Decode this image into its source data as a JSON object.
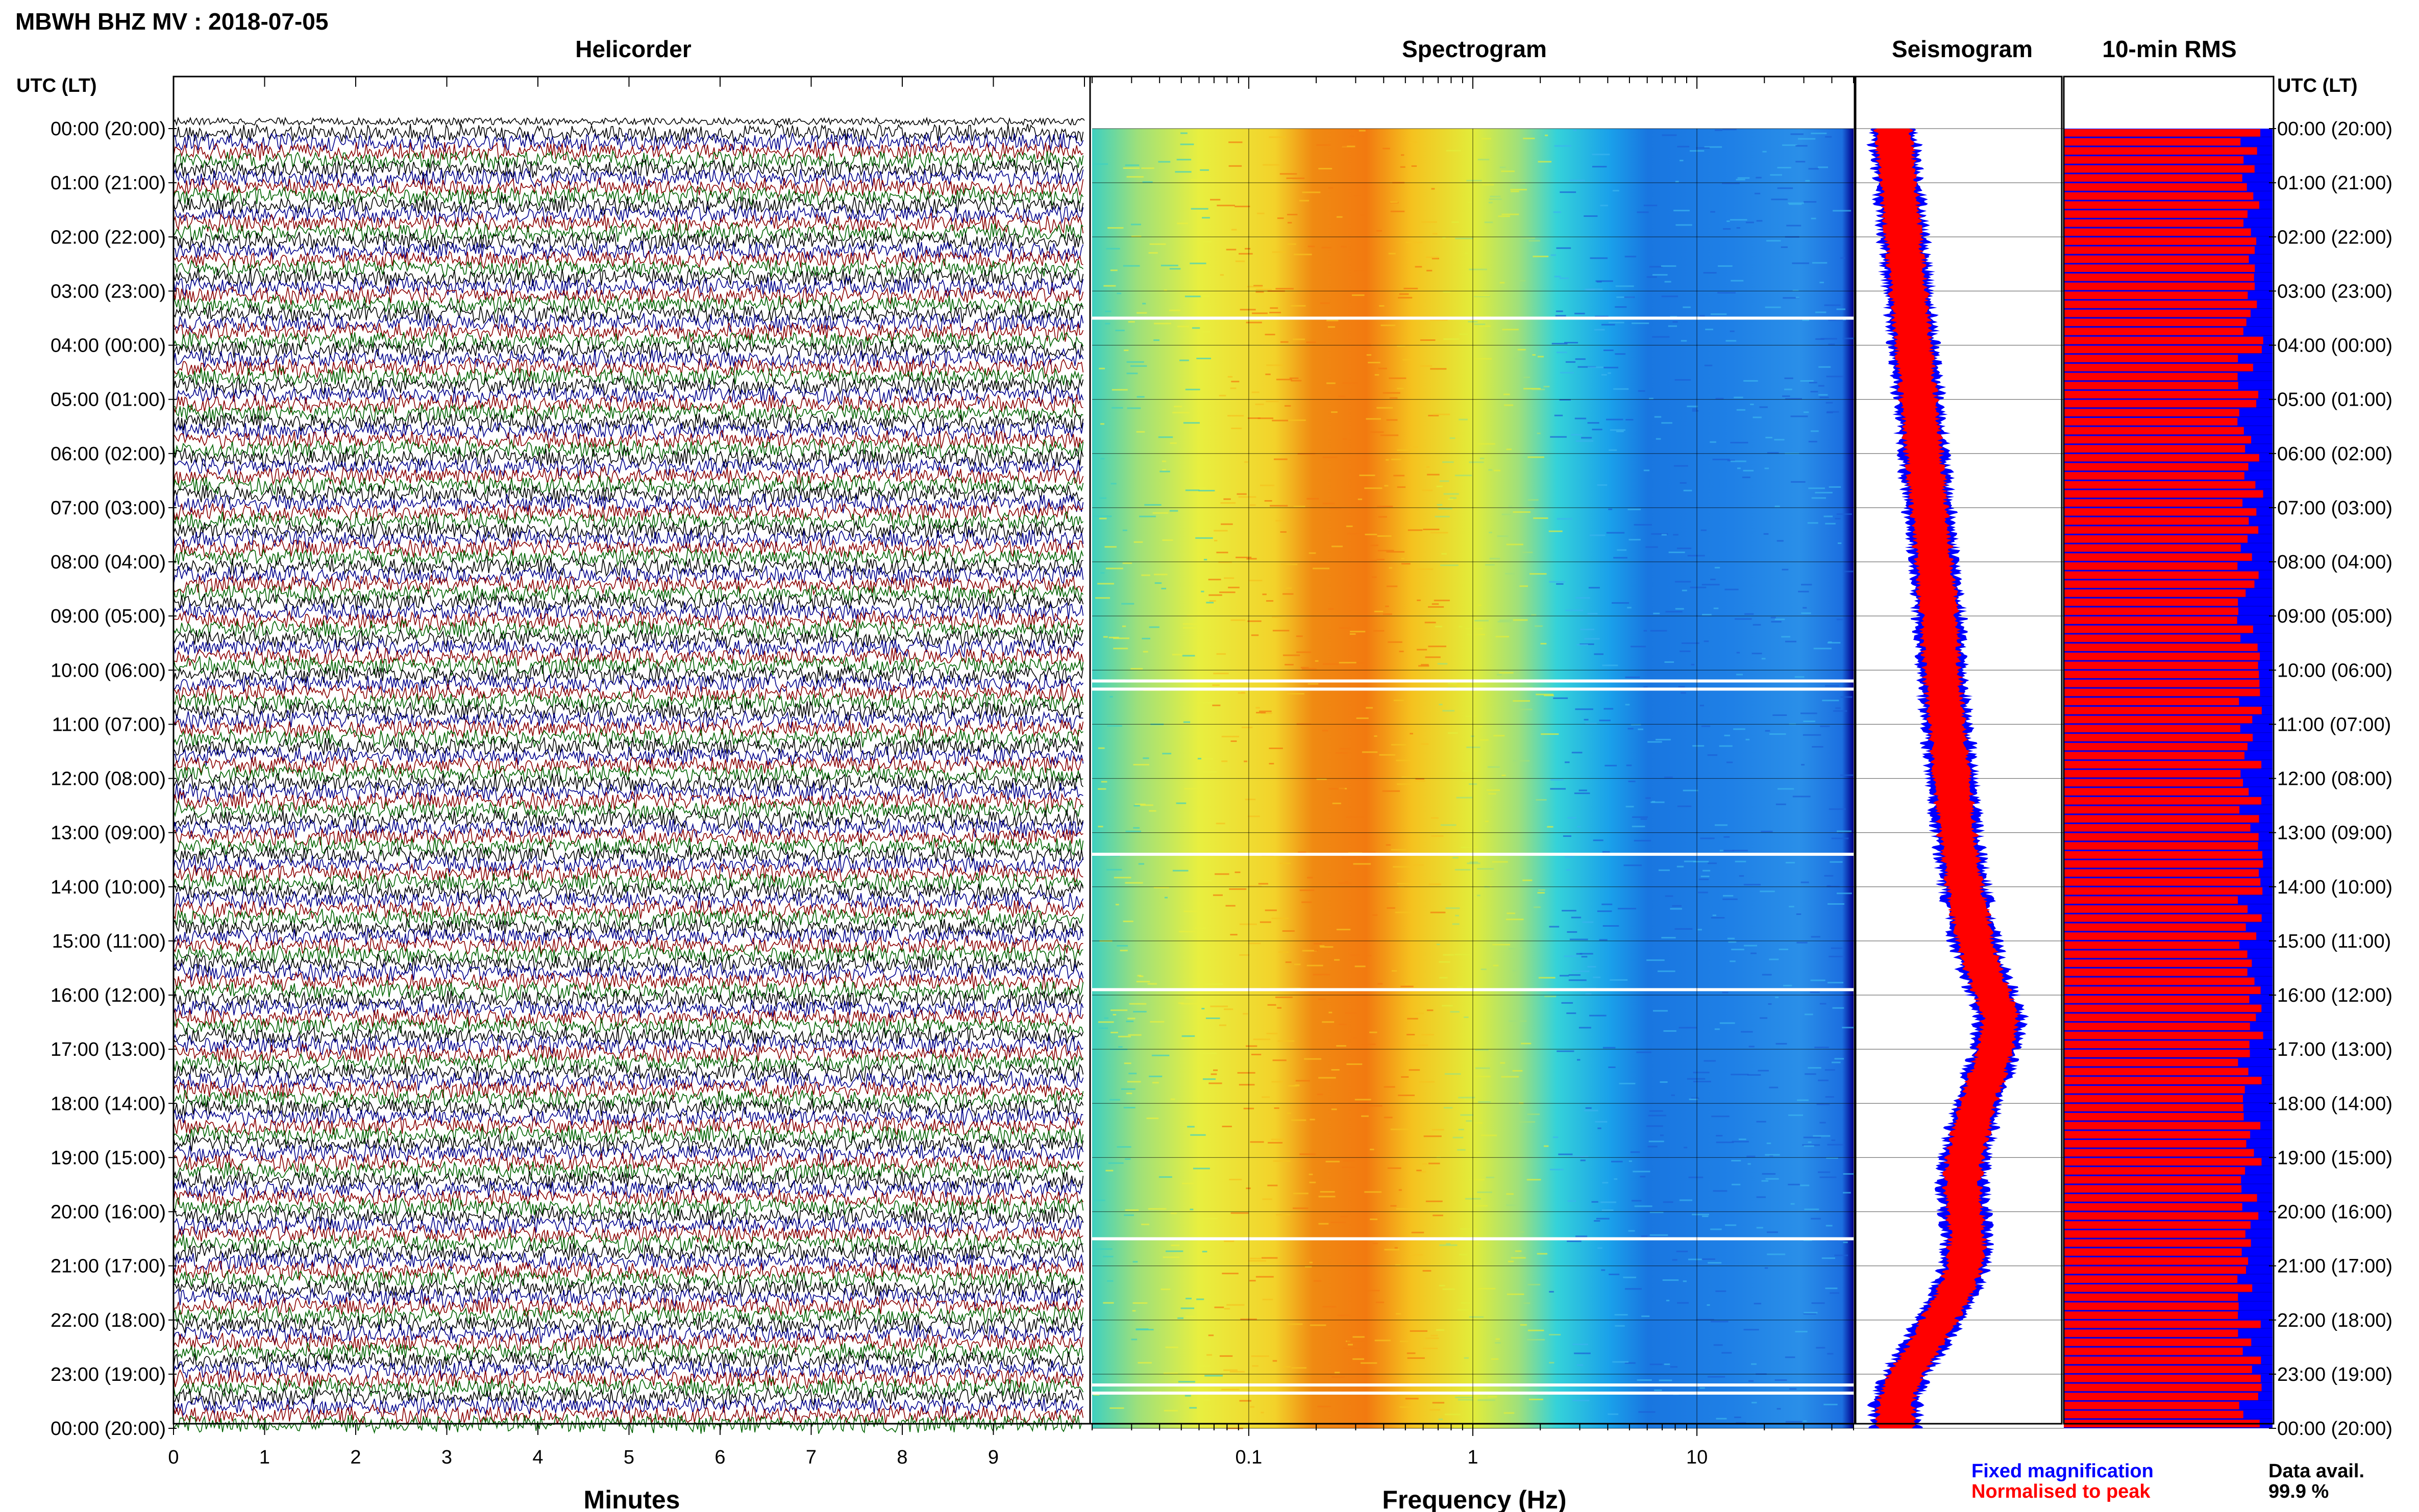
{
  "page_title": "MBWH BHZ MV : 2018-07-05",
  "colors": {
    "trace_cycle": [
      "#000000",
      "#00008b",
      "#8b0000",
      "#006400"
    ],
    "fixed": "#0000ff",
    "normalised": "#ff0000",
    "frame": "#000000",
    "grid": "#cccccc"
  },
  "chart_data": [
    {
      "type": "helicorder",
      "title": "Helicorder",
      "xlabel": "Minutes",
      "x_ticks": [
        "0",
        "1",
        "2",
        "3",
        "4",
        "5",
        "6",
        "7",
        "8",
        "9"
      ],
      "xlim": [
        0,
        10
      ],
      "y_axis_label_left": "UTC (LT)",
      "time_labels": [
        "00:00 (20:00)",
        "01:00 (21:00)",
        "02:00 (22:00)",
        "03:00 (23:00)",
        "04:00 (00:00)",
        "05:00 (01:00)",
        "06:00 (02:00)",
        "07:00 (03:00)",
        "08:00 (04:00)",
        "09:00 (05:00)",
        "10:00 (06:00)",
        "11:00 (07:00)",
        "12:00 (08:00)",
        "13:00 (09:00)",
        "14:00 (10:00)",
        "15:00 (11:00)",
        "16:00 (12:00)",
        "17:00 (13:00)",
        "18:00 (14:00)",
        "19:00 (15:00)",
        "20:00 (16:00)",
        "21:00 (17:00)",
        "22:00 (18:00)",
        "23:00 (19:00)",
        "00:00 (20:00)"
      ],
      "lines": 144,
      "minutes_per_line": 10
    },
    {
      "type": "heatmap",
      "title": "Spectrogram",
      "xlabel": "Frequency (Hz)",
      "x_scale": "log",
      "x_ticks": [
        "0.1",
        "1",
        "10"
      ],
      "xlim": [
        0.02,
        50
      ],
      "peak_band_hz": [
        0.2,
        0.5
      ],
      "gap_hours": [
        3.5,
        10.2,
        10.35,
        13.4,
        15.9,
        20.5,
        23.2,
        23.35
      ]
    },
    {
      "type": "line",
      "title": "Seismogram",
      "description_series": [
        "Fixed magnification",
        "Normalised to peak"
      ],
      "envelope_hours": [
        0,
        1,
        2,
        3,
        4,
        5,
        6,
        7,
        8,
        9,
        10,
        11,
        12,
        13,
        14,
        15,
        15.5,
        16,
        16.4,
        17,
        17.6,
        18,
        18.6,
        19,
        19.5,
        20,
        20.5,
        21,
        21.5,
        22,
        22.5,
        23,
        23.5,
        24
      ],
      "envelope_offset": [
        0.1,
        0.14,
        0.18,
        0.22,
        0.26,
        0.3,
        0.34,
        0.38,
        0.42,
        0.46,
        0.48,
        0.52,
        0.56,
        0.6,
        0.66,
        0.74,
        0.8,
        0.88,
        0.94,
        0.9,
        0.82,
        0.76,
        0.7,
        0.66,
        0.64,
        0.66,
        0.68,
        0.66,
        0.58,
        0.46,
        0.34,
        0.2,
        0.12,
        0.12
      ]
    },
    {
      "type": "bar",
      "title": "10-min RMS",
      "y_axis_label_right": "UTC (LT)",
      "time_labels_right": [
        "00:00 (20:00)",
        "01:00 (21:00)",
        "02:00 (22:00)",
        "03:00 (23:00)",
        "04:00 (00:00)",
        "05:00 (01:00)",
        "06:00 (02:00)",
        "07:00 (03:00)",
        "08:00 (04:00)",
        "09:00 (05:00)",
        "10:00 (06:00)",
        "11:00 (07:00)",
        "12:00 (08:00)",
        "13:00 (09:00)",
        "14:00 (10:00)",
        "15:00 (11:00)",
        "16:00 (12:00)",
        "17:00 (13:00)",
        "18:00 (14:00)",
        "19:00 (15:00)",
        "20:00 (16:00)",
        "21:00 (17:00)",
        "22:00 (18:00)",
        "23:00 (19:00)",
        "00:00 (20:00)"
      ],
      "bars": 144,
      "rms_relative": "approx. 0.85-1.0 of peak throughout the day"
    }
  ],
  "legend": {
    "fixed_label": "Fixed magnification",
    "normalised_label": "Normalised to peak"
  },
  "availability": {
    "label": "Data avail.",
    "value": "99.9 %"
  }
}
